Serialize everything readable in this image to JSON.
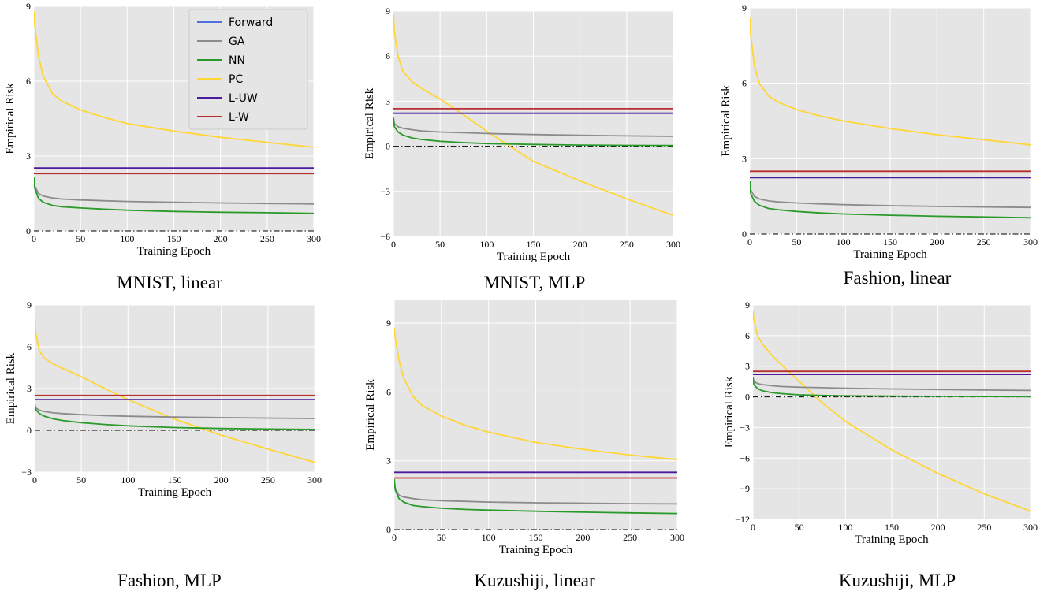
{
  "legend": {
    "entries": [
      {
        "label": "Forward",
        "color": "#4f6fe0"
      },
      {
        "label": "GA",
        "color": "#8c8c8c"
      },
      {
        "label": "NN",
        "color": "#2a9a2a"
      },
      {
        "label": "PC",
        "color": "#ffd633"
      },
      {
        "label": "L-UW",
        "color": "#4b1a9e"
      },
      {
        "label": "L-W",
        "color": "#b82e2e"
      }
    ]
  },
  "chart_data": [
    {
      "type": "line",
      "caption": "MNIST, linear",
      "xlabel": "Training Epoch",
      "ylabel": "Empirical Risk",
      "xlim": [
        0,
        300
      ],
      "ylim": [
        0,
        9
      ],
      "xticks": [
        0,
        50,
        100,
        150,
        200,
        250,
        300
      ],
      "yticks": [
        0,
        3,
        6,
        9
      ],
      "grid": true,
      "legend_position": "top-right",
      "zero_line": true,
      "x": [
        0,
        1,
        5,
        10,
        20,
        30,
        50,
        75,
        100,
        150,
        200,
        250,
        300
      ],
      "series": [
        {
          "name": "PC",
          "color": "#ffd633",
          "values": [
            8.8,
            8.2,
            7.0,
            6.2,
            5.5,
            5.2,
            4.85,
            4.55,
            4.3,
            4.0,
            3.75,
            3.55,
            3.35
          ]
        },
        {
          "name": "L-UW",
          "color": "#4b1a9e",
          "values": [
            2.52,
            2.52,
            2.52,
            2.52,
            2.52,
            2.52,
            2.52,
            2.52,
            2.52,
            2.52,
            2.52,
            2.52,
            2.52
          ]
        },
        {
          "name": "L-W",
          "color": "#b82e2e",
          "values": [
            2.3,
            2.3,
            2.3,
            2.3,
            2.3,
            2.3,
            2.3,
            2.3,
            2.3,
            2.3,
            2.3,
            2.3,
            2.3
          ]
        },
        {
          "name": "GA",
          "color": "#8c8c8c",
          "values": [
            2.15,
            1.8,
            1.5,
            1.4,
            1.32,
            1.28,
            1.24,
            1.21,
            1.18,
            1.15,
            1.12,
            1.1,
            1.08
          ]
        },
        {
          "name": "NN",
          "color": "#2a9a2a",
          "values": [
            2.15,
            1.7,
            1.3,
            1.15,
            1.02,
            0.97,
            0.92,
            0.87,
            0.83,
            0.78,
            0.75,
            0.73,
            0.7
          ]
        }
      ]
    },
    {
      "type": "line",
      "caption": "MNIST, MLP",
      "xlabel": "Training Epoch",
      "ylabel": "Empirical Risk",
      "xlim": [
        0,
        300
      ],
      "ylim": [
        -6,
        9
      ],
      "xticks": [
        0,
        50,
        100,
        150,
        200,
        250,
        300
      ],
      "yticks": [
        -6,
        -3,
        0,
        3,
        6,
        9
      ],
      "grid": true,
      "zero_line": true,
      "x": [
        0,
        1,
        5,
        10,
        20,
        30,
        50,
        75,
        100,
        150,
        200,
        250,
        300
      ],
      "series": [
        {
          "name": "PC",
          "color": "#ffd633",
          "values": [
            8.8,
            7.6,
            6.0,
            5.0,
            4.3,
            3.85,
            3.15,
            2.1,
            1.0,
            -1.0,
            -2.3,
            -3.5,
            -4.6
          ]
        },
        {
          "name": "L-W",
          "color": "#b82e2e",
          "values": [
            2.5,
            2.5,
            2.5,
            2.5,
            2.5,
            2.5,
            2.5,
            2.5,
            2.5,
            2.5,
            2.5,
            2.5,
            2.5
          ]
        },
        {
          "name": "L-UW",
          "color": "#4b1a9e",
          "values": [
            2.2,
            2.2,
            2.2,
            2.2,
            2.2,
            2.2,
            2.2,
            2.2,
            2.2,
            2.2,
            2.2,
            2.2,
            2.2
          ]
        },
        {
          "name": "GA",
          "color": "#8c8c8c",
          "values": [
            1.9,
            1.5,
            1.3,
            1.2,
            1.1,
            1.02,
            0.95,
            0.9,
            0.85,
            0.78,
            0.73,
            0.69,
            0.66
          ]
        },
        {
          "name": "NN",
          "color": "#2a9a2a",
          "values": [
            1.9,
            1.3,
            0.95,
            0.75,
            0.55,
            0.45,
            0.33,
            0.24,
            0.18,
            0.12,
            0.08,
            0.06,
            0.05
          ]
        }
      ]
    },
    {
      "type": "line",
      "caption": "Fashion, linear",
      "xlabel": "Training Epoch",
      "ylabel": "Empirical Risk",
      "xlim": [
        0,
        300
      ],
      "ylim": [
        0,
        9
      ],
      "xticks": [
        0,
        50,
        100,
        150,
        200,
        250,
        300
      ],
      "yticks": [
        0,
        3,
        6,
        9
      ],
      "grid": true,
      "zero_line": true,
      "x": [
        0,
        1,
        5,
        10,
        20,
        30,
        50,
        75,
        100,
        150,
        200,
        250,
        300
      ],
      "series": [
        {
          "name": "PC",
          "color": "#ffd633",
          "values": [
            8.6,
            7.9,
            6.7,
            6.0,
            5.5,
            5.25,
            4.95,
            4.7,
            4.5,
            4.2,
            3.95,
            3.75,
            3.55
          ]
        },
        {
          "name": "L-W",
          "color": "#b82e2e",
          "values": [
            2.5,
            2.5,
            2.5,
            2.5,
            2.5,
            2.5,
            2.5,
            2.5,
            2.5,
            2.5,
            2.5,
            2.5,
            2.5
          ]
        },
        {
          "name": "L-UW",
          "color": "#4b1a9e",
          "values": [
            2.25,
            2.25,
            2.25,
            2.25,
            2.25,
            2.25,
            2.25,
            2.25,
            2.25,
            2.25,
            2.25,
            2.25,
            2.25
          ]
        },
        {
          "name": "GA",
          "color": "#8c8c8c",
          "values": [
            2.1,
            1.75,
            1.5,
            1.4,
            1.32,
            1.28,
            1.24,
            1.2,
            1.17,
            1.13,
            1.1,
            1.08,
            1.06
          ]
        },
        {
          "name": "NN",
          "color": "#2a9a2a",
          "values": [
            2.1,
            1.6,
            1.3,
            1.15,
            1.02,
            0.97,
            0.9,
            0.84,
            0.8,
            0.75,
            0.71,
            0.68,
            0.65
          ]
        }
      ]
    },
    {
      "type": "line",
      "caption": "Fashion, MLP",
      "xlabel": "Training Epoch",
      "ylabel": "Empirical Risk",
      "xlim": [
        0,
        300
      ],
      "ylim": [
        -3,
        9
      ],
      "xticks": [
        0,
        50,
        100,
        150,
        200,
        250,
        300
      ],
      "yticks": [
        -3,
        0,
        3,
        6,
        9
      ],
      "grid": true,
      "zero_line": true,
      "x": [
        0,
        1,
        5,
        10,
        20,
        30,
        50,
        75,
        100,
        150,
        200,
        250,
        300
      ],
      "series": [
        {
          "name": "PC",
          "color": "#ffd633",
          "values": [
            8.2,
            7.0,
            5.7,
            5.2,
            4.75,
            4.45,
            3.85,
            3.0,
            2.2,
            0.8,
            -0.35,
            -1.35,
            -2.3
          ]
        },
        {
          "name": "L-W",
          "color": "#b82e2e",
          "values": [
            2.5,
            2.5,
            2.5,
            2.5,
            2.5,
            2.5,
            2.5,
            2.5,
            2.5,
            2.5,
            2.5,
            2.5,
            2.5
          ]
        },
        {
          "name": "L-UW",
          "color": "#4b1a9e",
          "values": [
            2.2,
            2.2,
            2.2,
            2.2,
            2.2,
            2.2,
            2.2,
            2.2,
            2.2,
            2.2,
            2.2,
            2.2,
            2.2
          ]
        },
        {
          "name": "GA",
          "color": "#8c8c8c",
          "values": [
            1.9,
            1.6,
            1.45,
            1.35,
            1.25,
            1.2,
            1.12,
            1.06,
            1.01,
            0.95,
            0.91,
            0.88,
            0.85
          ]
        },
        {
          "name": "NN",
          "color": "#2a9a2a",
          "values": [
            1.9,
            1.5,
            1.2,
            1.02,
            0.82,
            0.7,
            0.55,
            0.42,
            0.32,
            0.2,
            0.13,
            0.09,
            0.06
          ]
        }
      ]
    },
    {
      "type": "line",
      "caption": "Kuzushiji, linear",
      "xlabel": "Training Epoch",
      "ylabel": "Empirical Risk",
      "xlim": [
        0,
        300
      ],
      "ylim": [
        0,
        10
      ],
      "xticks": [
        0,
        50,
        100,
        150,
        200,
        250,
        300
      ],
      "yticks": [
        0,
        3,
        6,
        9
      ],
      "grid": true,
      "zero_line": true,
      "x": [
        0,
        1,
        5,
        10,
        20,
        30,
        50,
        75,
        100,
        150,
        200,
        250,
        300
      ],
      "series": [
        {
          "name": "PC",
          "color": "#ffd633",
          "values": [
            8.8,
            8.4,
            7.4,
            6.6,
            5.8,
            5.4,
            4.95,
            4.55,
            4.25,
            3.8,
            3.5,
            3.25,
            3.05
          ]
        },
        {
          "name": "L-UW",
          "color": "#4b1a9e",
          "values": [
            2.5,
            2.5,
            2.5,
            2.5,
            2.5,
            2.5,
            2.5,
            2.5,
            2.5,
            2.5,
            2.5,
            2.5,
            2.5
          ]
        },
        {
          "name": "L-W",
          "color": "#b82e2e",
          "values": [
            2.25,
            2.25,
            2.25,
            2.25,
            2.25,
            2.25,
            2.25,
            2.25,
            2.25,
            2.25,
            2.25,
            2.25,
            2.25
          ]
        },
        {
          "name": "GA",
          "color": "#8c8c8c",
          "values": [
            2.2,
            1.8,
            1.5,
            1.42,
            1.35,
            1.3,
            1.26,
            1.23,
            1.2,
            1.17,
            1.15,
            1.13,
            1.12
          ]
        },
        {
          "name": "NN",
          "color": "#2a9a2a",
          "values": [
            2.2,
            1.75,
            1.35,
            1.2,
            1.05,
            1.0,
            0.93,
            0.88,
            0.85,
            0.8,
            0.76,
            0.73,
            0.7
          ]
        }
      ]
    },
    {
      "type": "line",
      "caption": "Kuzushiji, MLP",
      "xlabel": "Training Epoch",
      "ylabel": "Empirical Risk",
      "xlim": [
        0,
        300
      ],
      "ylim": [
        -12,
        9
      ],
      "xticks": [
        0,
        50,
        100,
        150,
        200,
        250,
        300
      ],
      "yticks": [
        -12,
        -9,
        -6,
        -3,
        0,
        3,
        6,
        9
      ],
      "grid": true,
      "zero_line": true,
      "x": [
        0,
        1,
        5,
        10,
        20,
        30,
        50,
        75,
        100,
        150,
        200,
        250,
        300
      ],
      "series": [
        {
          "name": "PC",
          "color": "#ffd633",
          "values": [
            8.5,
            7.5,
            6.0,
            5.2,
            4.1,
            3.2,
            1.5,
            -0.6,
            -2.4,
            -5.2,
            -7.5,
            -9.5,
            -11.2
          ]
        },
        {
          "name": "L-W",
          "color": "#b82e2e",
          "values": [
            2.5,
            2.5,
            2.5,
            2.5,
            2.5,
            2.5,
            2.5,
            2.5,
            2.5,
            2.5,
            2.5,
            2.5,
            2.5
          ]
        },
        {
          "name": "L-UW",
          "color": "#4b1a9e",
          "values": [
            2.2,
            2.2,
            2.2,
            2.2,
            2.2,
            2.2,
            2.2,
            2.2,
            2.2,
            2.2,
            2.2,
            2.2,
            2.2
          ]
        },
        {
          "name": "GA",
          "color": "#8c8c8c",
          "values": [
            1.9,
            1.5,
            1.3,
            1.2,
            1.1,
            1.02,
            0.95,
            0.9,
            0.85,
            0.78,
            0.72,
            0.67,
            0.63
          ]
        },
        {
          "name": "NN",
          "color": "#2a9a2a",
          "values": [
            1.9,
            1.2,
            0.8,
            0.6,
            0.42,
            0.32,
            0.2,
            0.14,
            0.1,
            0.07,
            0.05,
            0.04,
            0.03
          ]
        }
      ]
    }
  ]
}
